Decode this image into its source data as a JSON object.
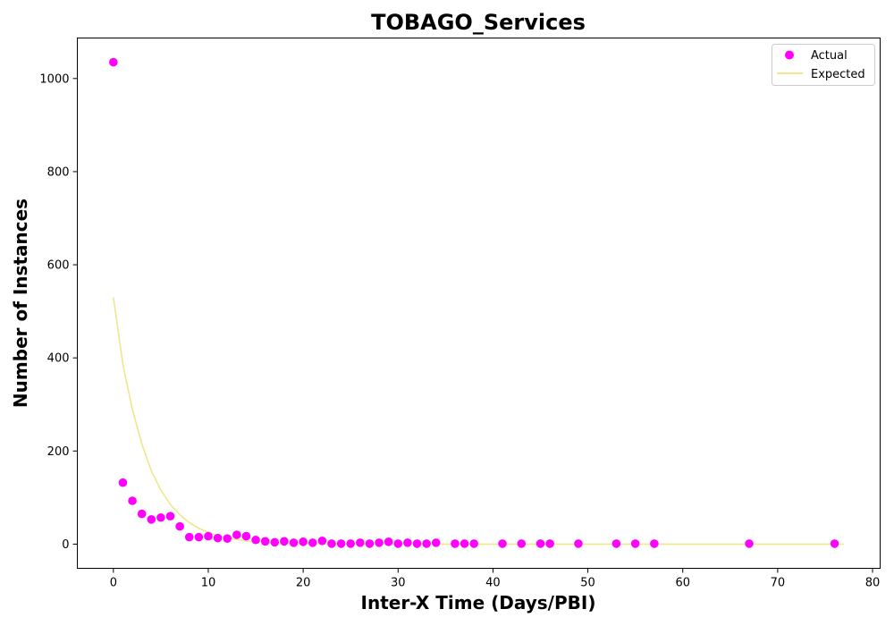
{
  "chart_data": {
    "type": "scatter",
    "title": "TOBAGO_Services",
    "xlabel": "Inter-X Time (Days/PBI)",
    "ylabel": "Number of Instances",
    "xlim": [
      -3.8,
      80.8
    ],
    "ylim": [
      -52,
      1087
    ],
    "xticks": [
      0,
      10,
      20,
      30,
      40,
      50,
      60,
      70,
      80
    ],
    "yticks": [
      0,
      200,
      400,
      600,
      800,
      1000
    ],
    "legend": "top-right",
    "grid": false,
    "series": [
      {
        "name": "Actual",
        "kind": "scatter",
        "color": "#ff00ff",
        "x": [
          0,
          1,
          2,
          3,
          4,
          5,
          6,
          7,
          8,
          9,
          10,
          11,
          12,
          13,
          14,
          15,
          16,
          17,
          18,
          19,
          20,
          21,
          22,
          23,
          24,
          25,
          26,
          27,
          28,
          29,
          30,
          31,
          32,
          33,
          34,
          36,
          37,
          38,
          41,
          43,
          45,
          46,
          49,
          53,
          55,
          57,
          67,
          76
        ],
        "y": [
          1035,
          132,
          93,
          65,
          53,
          57,
          60,
          38,
          15,
          15,
          17,
          13,
          12,
          20,
          17,
          9,
          6,
          4,
          6,
          3,
          5,
          3,
          7,
          1,
          1,
          1,
          3,
          1,
          3,
          5,
          1,
          3,
          1,
          1,
          3,
          1,
          1,
          1,
          1,
          1,
          1,
          1,
          1,
          1,
          1,
          1,
          1,
          1
        ]
      },
      {
        "name": "Expected",
        "kind": "line",
        "color": "#f0e68c",
        "x": [
          0,
          1,
          2,
          3,
          4,
          5,
          6,
          7,
          8,
          9,
          10,
          11,
          12,
          13,
          14,
          15,
          16,
          17,
          18,
          19,
          20,
          22,
          24,
          26,
          28,
          30,
          35,
          40,
          45,
          50,
          55,
          60,
          65,
          70,
          77
        ],
        "y": [
          530,
          386,
          289,
          215,
          157,
          116,
          85,
          63,
          46,
          34,
          25,
          18,
          13,
          10,
          7,
          5,
          4,
          3,
          2,
          1.5,
          1.1,
          0.6,
          0.3,
          0.2,
          0.1,
          0.05,
          0,
          0,
          0,
          0,
          0,
          0,
          0,
          0,
          0
        ]
      }
    ]
  }
}
